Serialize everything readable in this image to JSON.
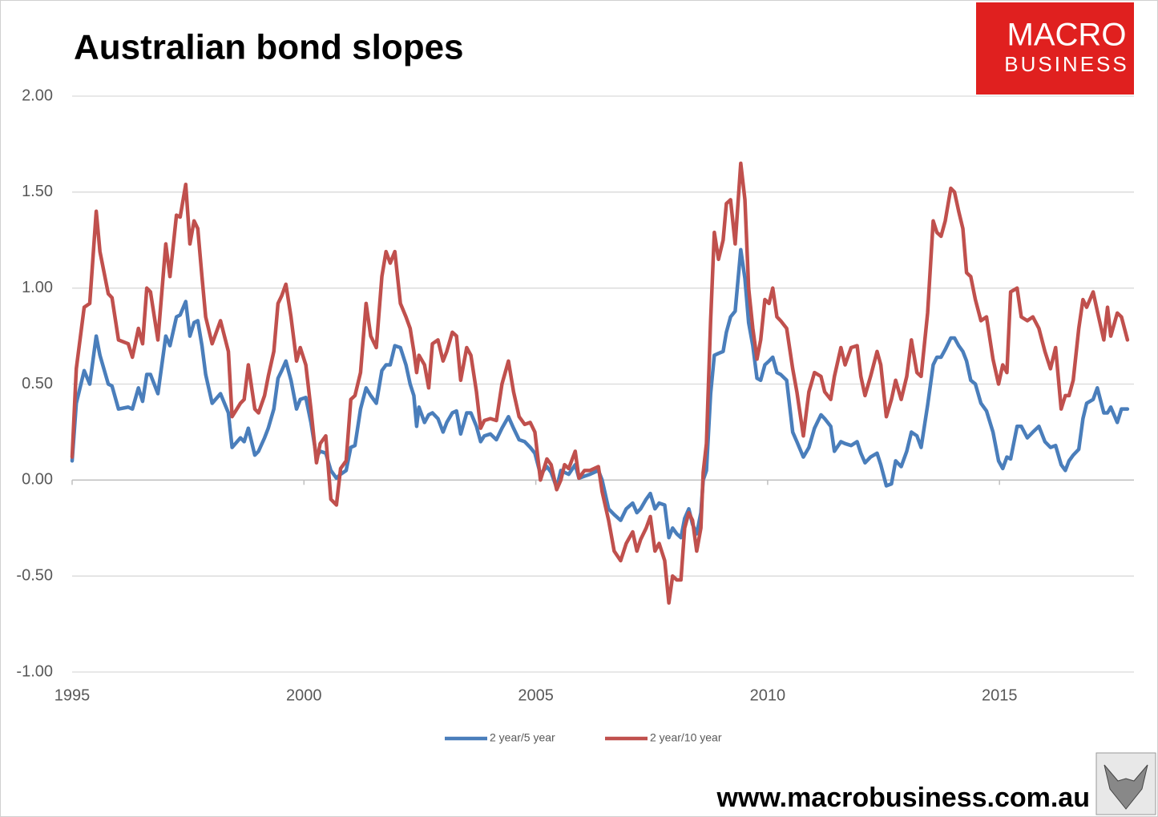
{
  "logo": {
    "line1": "MACRO",
    "line2": "BUSINESS"
  },
  "website": "www.macrobusiness.com.au",
  "chart_data": {
    "type": "line",
    "title": "Australian bond slopes",
    "x": [
      1995,
      1995.09,
      1995.26,
      1995.38,
      1995.52,
      1995.6,
      1995.78,
      1995.86,
      1996,
      1996.21,
      1996.3,
      1996.43,
      1996.52,
      1996.61,
      1996.69,
      1996.85,
      1997.02,
      1997.11,
      1997.25,
      1997.33,
      1997.45,
      1997.54,
      1997.63,
      1997.71,
      1997.8,
      1997.88,
      1998.02,
      1998.2,
      1998.37,
      1998.45,
      1998.63,
      1998.71,
      1998.8,
      1998.94,
      1999.02,
      1999.15,
      1999.23,
      1999.35,
      1999.44,
      1999.52,
      1999.61,
      1999.72,
      1999.84,
      1999.92,
      2000.04,
      2000.15,
      2000.27,
      2000.35,
      2000.47,
      2000.58,
      2000.7,
      2000.79,
      2000.91,
      2001.01,
      2001.1,
      2001.22,
      2001.34,
      2001.44,
      2001.56,
      2001.68,
      2001.77,
      2001.86,
      2001.96,
      2002.08,
      2002.2,
      2002.29,
      2002.37,
      2002.43,
      2002.48,
      2002.6,
      2002.69,
      2002.77,
      2002.89,
      2003,
      2003.08,
      2003.2,
      2003.29,
      2003.38,
      2003.51,
      2003.6,
      2003.72,
      2003.81,
      2003.89,
      2004.02,
      2004.15,
      2004.27,
      2004.41,
      2004.52,
      2004.64,
      2004.76,
      2004.88,
      2004.98,
      2005.1,
      2005.24,
      2005.33,
      2005.45,
      2005.54,
      2005.62,
      2005.71,
      2005.85,
      2005.93,
      2006.05,
      2006.17,
      2006.35,
      2006.43,
      2006.57,
      2006.69,
      2006.83,
      2006.95,
      2007.09,
      2007.18,
      2007.26,
      2007.38,
      2007.47,
      2007.57,
      2007.66,
      2007.78,
      2007.87,
      2007.95,
      2008.04,
      2008.13,
      2008.21,
      2008.3,
      2008.38,
      2008.47,
      2008.56,
      2008.61,
      2008.68,
      2008.77,
      2008.85,
      2008.94,
      2009.04,
      2009.11,
      2009.2,
      2009.3,
      2009.42,
      2009.51,
      2009.59,
      2009.68,
      2009.77,
      2009.85,
      2009.94,
      2010.03,
      2010.11,
      2010.2,
      2010.28,
      2010.41,
      2010.54,
      2010.63,
      2010.77,
      2010.89,
      2011.01,
      2011.15,
      2011.23,
      2011.36,
      2011.44,
      2011.58,
      2011.67,
      2011.8,
      2011.93,
      2012.01,
      2012.1,
      2012.22,
      2012.36,
      2012.44,
      2012.56,
      2012.67,
      2012.76,
      2012.88,
      2013,
      2013.1,
      2013.22,
      2013.31,
      2013.45,
      2013.57,
      2013.65,
      2013.74,
      2013.83,
      2013.95,
      2014.03,
      2014.12,
      2014.21,
      2014.29,
      2014.38,
      2014.48,
      2014.6,
      2014.72,
      2014.86,
      2014.98,
      2015.07,
      2015.16,
      2015.24,
      2015.38,
      2015.47,
      2015.6,
      2015.72,
      2015.85,
      2015.98,
      2016.1,
      2016.21,
      2016.33,
      2016.42,
      2016.5,
      2016.59,
      2016.71,
      2016.8,
      2016.88,
      2017.02,
      2017.11,
      2017.25,
      2017.33,
      2017.4,
      2017.54,
      2017.63,
      2017.76
    ],
    "series": [
      {
        "name": "2 year/5 year",
        "color": "#4a7ebb",
        "values": [
          0.1,
          0.4,
          0.57,
          0.5,
          0.75,
          0.65,
          0.5,
          0.49,
          0.37,
          0.38,
          0.37,
          0.48,
          0.41,
          0.55,
          0.55,
          0.45,
          0.75,
          0.7,
          0.85,
          0.86,
          0.93,
          0.75,
          0.82,
          0.83,
          0.7,
          0.55,
          0.4,
          0.45,
          0.35,
          0.17,
          0.22,
          0.2,
          0.27,
          0.13,
          0.15,
          0.22,
          0.27,
          0.37,
          0.53,
          0.57,
          0.62,
          0.52,
          0.37,
          0.42,
          0.43,
          0.3,
          0.12,
          0.15,
          0.14,
          0.05,
          0.01,
          0.03,
          0.05,
          0.17,
          0.18,
          0.37,
          0.48,
          0.44,
          0.4,
          0.57,
          0.6,
          0.6,
          0.7,
          0.69,
          0.6,
          0.5,
          0.44,
          0.28,
          0.38,
          0.3,
          0.34,
          0.35,
          0.32,
          0.25,
          0.3,
          0.35,
          0.36,
          0.24,
          0.35,
          0.35,
          0.28,
          0.2,
          0.23,
          0.24,
          0.21,
          0.27,
          0.33,
          0.27,
          0.21,
          0.2,
          0.17,
          0.14,
          0.03,
          0.07,
          0.04,
          -0.04,
          0.05,
          0.04,
          0.03,
          0.08,
          0.01,
          0.02,
          0.03,
          0.05,
          0.0,
          -0.15,
          -0.18,
          -0.21,
          -0.15,
          -0.12,
          -0.17,
          -0.15,
          -0.1,
          -0.07,
          -0.15,
          -0.12,
          -0.13,
          -0.3,
          -0.25,
          -0.28,
          -0.3,
          -0.2,
          -0.15,
          -0.23,
          -0.28,
          -0.17,
          0.0,
          0.05,
          0.45,
          0.65,
          0.66,
          0.67,
          0.77,
          0.85,
          0.88,
          1.2,
          1.05,
          0.82,
          0.7,
          0.53,
          0.52,
          0.6,
          0.62,
          0.64,
          0.56,
          0.55,
          0.52,
          0.25,
          0.2,
          0.12,
          0.17,
          0.27,
          0.34,
          0.32,
          0.28,
          0.15,
          0.2,
          0.19,
          0.18,
          0.2,
          0.14,
          0.09,
          0.12,
          0.14,
          0.08,
          -0.03,
          -0.02,
          0.1,
          0.07,
          0.15,
          0.25,
          0.23,
          0.17,
          0.39,
          0.6,
          0.64,
          0.64,
          0.68,
          0.74,
          0.74,
          0.7,
          0.67,
          0.62,
          0.52,
          0.5,
          0.4,
          0.36,
          0.25,
          0.1,
          0.06,
          0.12,
          0.11,
          0.28,
          0.28,
          0.22,
          0.25,
          0.28,
          0.2,
          0.17,
          0.18,
          0.08,
          0.05,
          0.1,
          0.13,
          0.16,
          0.32,
          0.4,
          0.42,
          0.48,
          0.35,
          0.35,
          0.38,
          0.3,
          0.37,
          0.37
        ]
      },
      {
        "name": "2 year/10 year",
        "color": "#c0504d",
        "values": [
          0.12,
          0.58,
          0.9,
          0.92,
          1.4,
          1.19,
          0.97,
          0.95,
          0.73,
          0.71,
          0.64,
          0.79,
          0.71,
          1.0,
          0.98,
          0.73,
          1.23,
          1.06,
          1.38,
          1.37,
          1.54,
          1.23,
          1.35,
          1.31,
          1.06,
          0.85,
          0.71,
          0.83,
          0.67,
          0.33,
          0.4,
          0.42,
          0.6,
          0.37,
          0.35,
          0.44,
          0.54,
          0.67,
          0.92,
          0.96,
          1.02,
          0.85,
          0.62,
          0.69,
          0.6,
          0.37,
          0.09,
          0.19,
          0.23,
          -0.1,
          -0.13,
          0.06,
          0.1,
          0.42,
          0.44,
          0.56,
          0.92,
          0.75,
          0.69,
          1.06,
          1.19,
          1.13,
          1.19,
          0.92,
          0.85,
          0.79,
          0.67,
          0.56,
          0.65,
          0.6,
          0.48,
          0.71,
          0.73,
          0.62,
          0.67,
          0.77,
          0.75,
          0.52,
          0.69,
          0.65,
          0.46,
          0.27,
          0.31,
          0.32,
          0.31,
          0.5,
          0.62,
          0.46,
          0.33,
          0.29,
          0.3,
          0.25,
          0.0,
          0.11,
          0.08,
          -0.05,
          0.0,
          0.08,
          0.06,
          0.15,
          0.01,
          0.05,
          0.05,
          0.07,
          -0.06,
          -0.21,
          -0.37,
          -0.42,
          -0.33,
          -0.27,
          -0.37,
          -0.31,
          -0.25,
          -0.19,
          -0.37,
          -0.33,
          -0.42,
          -0.64,
          -0.5,
          -0.52,
          -0.52,
          -0.25,
          -0.17,
          -0.21,
          -0.37,
          -0.25,
          0.04,
          0.19,
          0.83,
          1.29,
          1.15,
          1.25,
          1.44,
          1.46,
          1.23,
          1.65,
          1.46,
          1.0,
          0.79,
          0.63,
          0.73,
          0.94,
          0.92,
          1.0,
          0.85,
          0.83,
          0.79,
          0.58,
          0.46,
          0.23,
          0.46,
          0.56,
          0.54,
          0.46,
          0.42,
          0.54,
          0.69,
          0.6,
          0.69,
          0.7,
          0.54,
          0.44,
          0.54,
          0.67,
          0.6,
          0.33,
          0.42,
          0.52,
          0.42,
          0.54,
          0.73,
          0.56,
          0.54,
          0.87,
          1.35,
          1.29,
          1.27,
          1.35,
          1.52,
          1.5,
          1.4,
          1.31,
          1.08,
          1.06,
          0.94,
          0.83,
          0.85,
          0.63,
          0.5,
          0.6,
          0.56,
          0.98,
          1.0,
          0.85,
          0.83,
          0.85,
          0.79,
          0.67,
          0.58,
          0.69,
          0.37,
          0.44,
          0.44,
          0.52,
          0.79,
          0.94,
          0.9,
          0.98,
          0.88,
          0.73,
          0.9,
          0.75,
          0.87,
          0.85,
          0.73
        ]
      }
    ],
    "xlim": [
      1995,
      2017.9
    ],
    "xticks": [
      1995,
      2000,
      2005,
      2010,
      2015
    ],
    "ylim": [
      -1,
      2
    ],
    "yticks": [
      {
        "value": -1,
        "label": "-1.00"
      },
      {
        "value": -0.5,
        "label": "-0.50"
      },
      {
        "value": 0,
        "label": "0.00"
      },
      {
        "value": 0.5,
        "label": "0.50"
      },
      {
        "value": 1,
        "label": "1.00"
      },
      {
        "value": 1.5,
        "label": "1.50"
      },
      {
        "value": 2,
        "label": "2.00"
      }
    ],
    "grid": true,
    "legend": "bottom"
  }
}
